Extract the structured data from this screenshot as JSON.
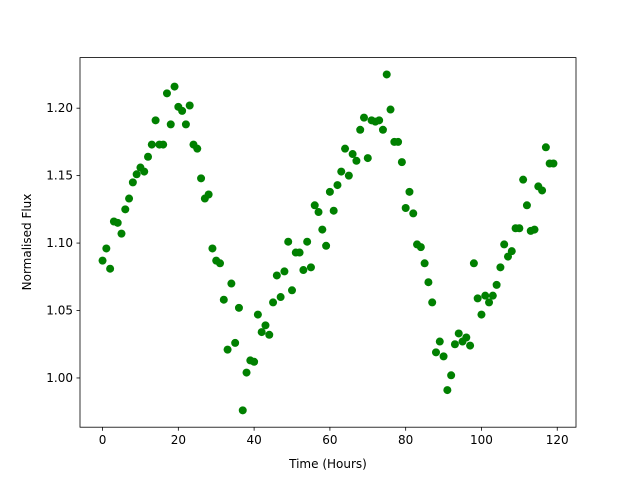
{
  "chart_data": {
    "type": "scatter",
    "x_label": "Time (Hours)",
    "y_label": "Normalised Flux",
    "color": "#008000",
    "x": [
      0,
      1,
      2,
      3,
      4,
      5,
      6,
      7,
      8,
      9,
      10,
      11,
      12,
      13,
      14,
      15,
      16,
      17,
      18,
      19,
      20,
      21,
      22,
      23,
      24,
      25,
      26,
      27,
      28,
      29,
      30,
      31,
      32,
      33,
      34,
      35,
      36,
      37,
      38,
      39,
      40,
      41,
      42,
      43,
      44,
      45,
      46,
      47,
      48,
      49,
      50,
      51,
      52,
      53,
      54,
      55,
      56,
      57,
      58,
      59,
      60,
      61,
      62,
      63,
      64,
      65,
      66,
      67,
      68,
      69,
      70,
      71,
      72,
      73,
      74,
      75,
      76,
      77,
      78,
      79,
      80,
      81,
      82,
      83,
      84,
      85,
      86,
      87,
      88,
      89,
      90,
      91,
      92,
      93,
      94,
      95,
      96,
      97,
      98,
      99,
      100,
      101,
      102,
      103,
      104,
      105,
      106,
      107,
      108,
      109,
      110,
      111,
      112,
      113,
      114,
      115,
      116,
      117,
      118,
      119
    ],
    "values": [
      1.087,
      1.096,
      1.081,
      1.116,
      1.115,
      1.107,
      1.125,
      1.133,
      1.145,
      1.151,
      1.156,
      1.153,
      1.164,
      1.173,
      1.191,
      1.173,
      1.173,
      1.211,
      1.188,
      1.216,
      1.201,
      1.198,
      1.188,
      1.202,
      1.173,
      1.17,
      1.148,
      1.133,
      1.136,
      1.096,
      1.087,
      1.085,
      1.058,
      1.021,
      1.07,
      1.026,
      1.052,
      0.976,
      1.004,
      1.013,
      1.012,
      1.047,
      1.034,
      1.039,
      1.032,
      1.056,
      1.076,
      1.06,
      1.079,
      1.101,
      1.065,
      1.093,
      1.093,
      1.08,
      1.101,
      1.082,
      1.128,
      1.123,
      1.11,
      1.098,
      1.138,
      1.124,
      1.143,
      1.153,
      1.17,
      1.15,
      1.166,
      1.161,
      1.184,
      1.193,
      1.163,
      1.191,
      1.19,
      1.191,
      1.184,
      1.225,
      1.199,
      1.175,
      1.175,
      1.16,
      1.126,
      1.138,
      1.122,
      1.099,
      1.097,
      1.085,
      1.071,
      1.056,
      1.019,
      1.027,
      1.016,
      0.991,
      1.002,
      1.025,
      1.033,
      1.027,
      1.03,
      1.024,
      1.085,
      1.059,
      1.047,
      1.061,
      1.056,
      1.061,
      1.069,
      1.082,
      1.099,
      1.09,
      1.094,
      1.111,
      1.111,
      1.147,
      1.128,
      1.109,
      1.11,
      1.142,
      1.139,
      1.171,
      1.159,
      1.159
    ],
    "xlim": [
      -5.95,
      124.95
    ],
    "xticks": [
      0,
      20,
      40,
      60,
      80,
      100,
      120
    ],
    "ylim": [
      0.9635,
      1.2375
    ],
    "yticks": [
      {
        "value": 1.0,
        "label": "1.00"
      },
      1.05,
      {
        "value": 1.1,
        "label": "1.10"
      },
      1.15,
      {
        "value": 1.2,
        "label": "1.20"
      }
    ],
    "grid": false
  }
}
